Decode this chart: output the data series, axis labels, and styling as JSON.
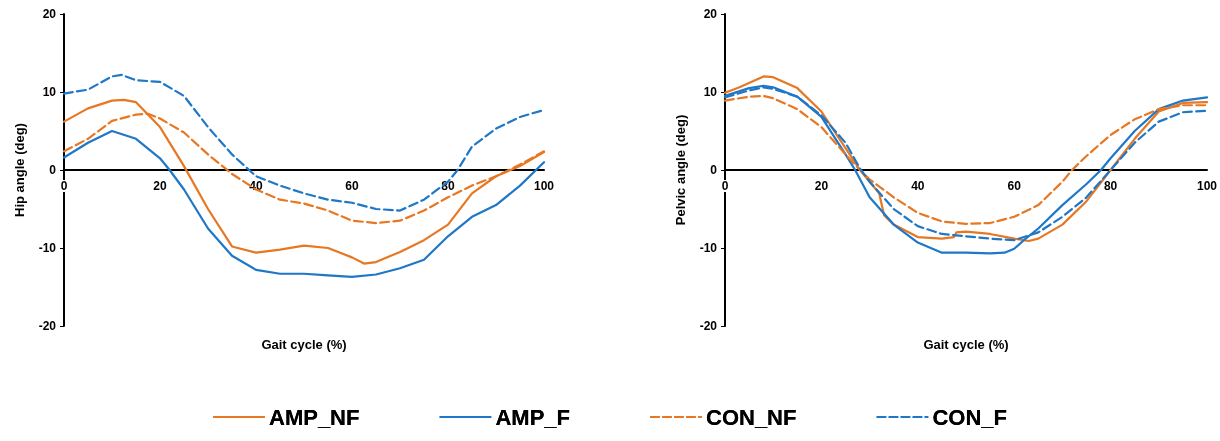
{
  "chart_data": [
    {
      "type": "line",
      "xlabel": "Gait cycle (%)",
      "ylabel": "Hip angle (deg)",
      "xlim": [
        0,
        100
      ],
      "xticks": [
        0,
        20,
        40,
        60,
        80,
        100
      ],
      "ylim": [
        -20,
        20
      ],
      "yticks": [
        -20,
        -10,
        0,
        10,
        20
      ],
      "grid": false,
      "legend": "bottom",
      "marker": "none",
      "series": [
        {
          "name": "AMP_NF",
          "color": "#e87722",
          "line_style": "solid",
          "x": [
            0,
            5,
            10,
            12.5,
            15,
            20,
            25,
            30,
            35,
            40,
            45,
            50,
            55,
            60,
            62.5,
            65,
            70,
            75,
            80,
            85,
            90,
            95,
            100
          ],
          "values": [
            6.2,
            7.9,
            8.9,
            9.0,
            8.7,
            5.5,
            0.5,
            -5.0,
            -9.8,
            -10.6,
            -10.2,
            -9.7,
            -10.0,
            -11.2,
            -12.0,
            -11.8,
            -10.5,
            -9.0,
            -7.0,
            -3.0,
            -0.8,
            0.5,
            2.3
          ]
        },
        {
          "name": "AMP_F",
          "color": "#1f77c8",
          "line_style": "solid",
          "x": [
            0,
            5,
            10,
            15,
            20,
            22,
            25,
            30,
            35,
            40,
            45,
            50,
            55,
            60,
            65,
            70,
            75,
            80,
            85,
            90,
            95,
            100
          ],
          "values": [
            1.6,
            3.5,
            5.0,
            4.0,
            1.5,
            0,
            -2.5,
            -7.5,
            -11.0,
            -12.8,
            -13.3,
            -13.3,
            -13.5,
            -13.7,
            -13.4,
            -12.6,
            -11.5,
            -8.5,
            -6.0,
            -4.5,
            -2.0,
            1.0
          ]
        },
        {
          "name": "CON_NF",
          "color": "#e87722",
          "line_style": "dashed",
          "x": [
            0,
            5,
            10,
            15,
            17.5,
            20,
            25,
            30,
            35,
            40,
            45,
            50,
            55,
            60,
            65,
            70,
            75,
            80,
            85,
            90,
            95,
            100
          ],
          "values": [
            2.4,
            4.0,
            6.3,
            7.1,
            7.2,
            6.6,
            4.8,
            2.0,
            -0.5,
            -2.5,
            -3.8,
            -4.3,
            -5.2,
            -6.5,
            -6.8,
            -6.5,
            -5.2,
            -3.5,
            -2.0,
            -0.8,
            0.7,
            2.4
          ]
        },
        {
          "name": "CON_F",
          "color": "#1f77c8",
          "line_style": "dashed",
          "x": [
            0,
            5,
            10,
            12,
            15,
            20,
            25,
            30,
            35,
            40,
            45,
            50,
            55,
            60,
            65,
            70,
            75,
            80,
            82,
            85,
            90,
            95,
            100
          ],
          "values": [
            9.8,
            10.3,
            12.0,
            12.2,
            11.5,
            11.3,
            9.5,
            5.5,
            2.0,
            -0.8,
            -2.0,
            -3.0,
            -3.8,
            -4.2,
            -5.0,
            -5.2,
            -3.8,
            -1.5,
            0,
            3.0,
            5.3,
            6.8,
            7.7
          ]
        }
      ]
    },
    {
      "type": "line",
      "xlabel": "Gait cycle (%)",
      "ylabel": "Pelvic angle (deg)",
      "xlim": [
        0,
        100
      ],
      "xticks": [
        0,
        20,
        40,
        60,
        80,
        100
      ],
      "ylim": [
        -20,
        20
      ],
      "yticks": [
        -20,
        -10,
        0,
        10,
        20
      ],
      "grid": false,
      "legend": "bottom",
      "marker": "none",
      "series": [
        {
          "name": "AMP_NF",
          "color": "#e87722",
          "line_style": "solid",
          "x": [
            0,
            3,
            8,
            10,
            15,
            20,
            25,
            28,
            30,
            32,
            33,
            35,
            40,
            45,
            47.5,
            48,
            50,
            55,
            60,
            63,
            65,
            70,
            75,
            80,
            85,
            90,
            95,
            100
          ],
          "values": [
            9.9,
            10.6,
            12.0,
            11.9,
            10.5,
            7.5,
            2.8,
            0,
            -1.5,
            -3.0,
            -5.8,
            -7.0,
            -8.6,
            -8.8,
            -8.6,
            -8.0,
            -7.9,
            -8.2,
            -8.8,
            -9.1,
            -8.8,
            -7.0,
            -4.0,
            0,
            4.0,
            7.5,
            8.6,
            8.7
          ]
        },
        {
          "name": "AMP_F",
          "color": "#1f77c8",
          "line_style": "solid",
          "x": [
            0,
            5,
            8,
            10,
            15,
            20,
            25,
            27,
            30,
            35,
            40,
            45,
            50,
            55,
            58,
            60,
            62,
            65,
            70,
            75,
            78,
            80,
            85,
            90,
            95,
            100
          ],
          "values": [
            9.5,
            10.5,
            10.8,
            10.6,
            9.4,
            6.8,
            2.0,
            0,
            -3.5,
            -7.0,
            -9.3,
            -10.6,
            -10.6,
            -10.7,
            -10.6,
            -10.1,
            -9.0,
            -7.5,
            -4.5,
            -1.8,
            0,
            1.5,
            5.0,
            7.8,
            8.9,
            9.3
          ]
        },
        {
          "name": "CON_NF",
          "color": "#e87722",
          "line_style": "dashed",
          "x": [
            0,
            5,
            8,
            10,
            15,
            20,
            25,
            28,
            30,
            35,
            40,
            45,
            50,
            55,
            60,
            65,
            70,
            72,
            75,
            80,
            85,
            90,
            95,
            100
          ],
          "values": [
            8.9,
            9.4,
            9.5,
            9.2,
            7.8,
            5.5,
            2.0,
            0,
            -1.2,
            -3.5,
            -5.5,
            -6.6,
            -6.9,
            -6.8,
            -6.0,
            -4.5,
            -1.5,
            0,
            1.8,
            4.5,
            6.5,
            7.8,
            8.3,
            8.3
          ]
        },
        {
          "name": "CON_F",
          "color": "#1f77c8",
          "line_style": "dashed",
          "x": [
            0,
            5,
            8,
            10,
            15,
            20,
            25,
            28,
            30,
            35,
            40,
            45,
            50,
            55,
            60,
            65,
            70,
            75,
            80,
            85,
            90,
            95,
            100
          ],
          "values": [
            9.3,
            10.2,
            10.6,
            10.4,
            9.4,
            7.0,
            3.5,
            0.2,
            -1.5,
            -5.0,
            -7.2,
            -8.2,
            -8.5,
            -8.8,
            -9.0,
            -8.0,
            -6.0,
            -3.5,
            0,
            3.5,
            6.2,
            7.4,
            7.6
          ]
        }
      ]
    }
  ]
}
